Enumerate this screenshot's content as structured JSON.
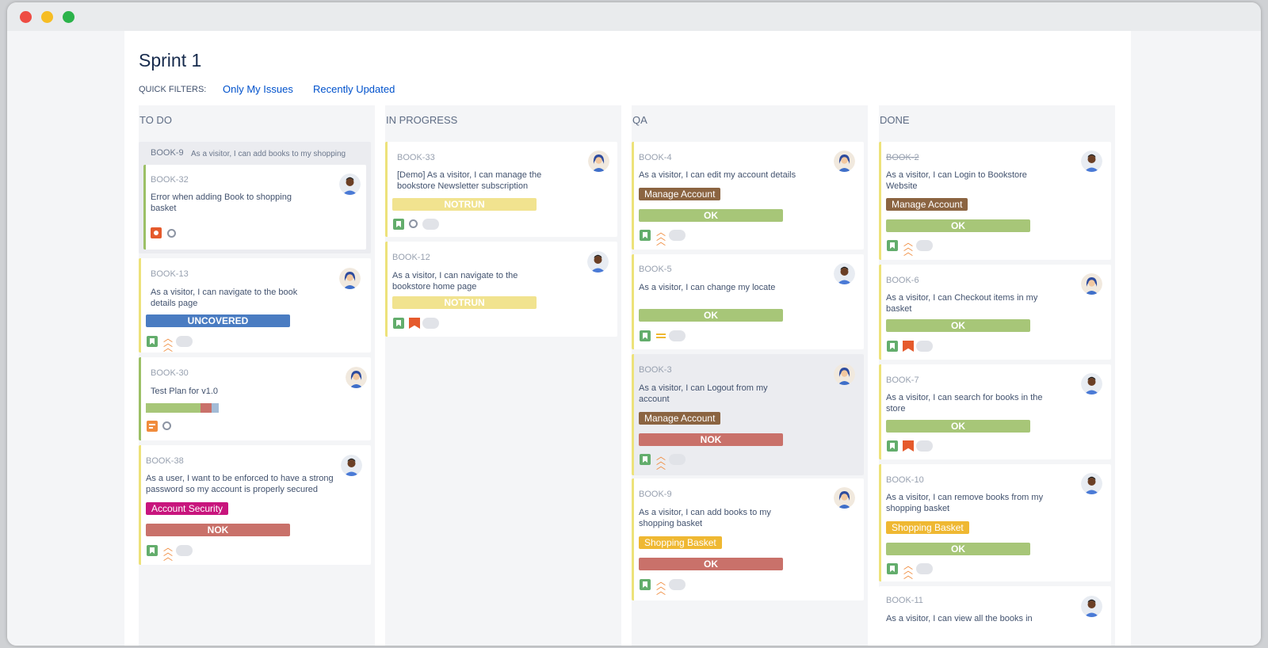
{
  "board": {
    "title": "Sprint 1",
    "quick_filters_label": "QUICK FILTERS:",
    "filters": [
      "Only My Issues",
      "Recently Updated"
    ]
  },
  "columns": [
    {
      "name": "TO DO"
    },
    {
      "name": "IN PROGRESS"
    },
    {
      "name": "QA"
    },
    {
      "name": "DONE"
    }
  ],
  "cards": {
    "book9_parent": {
      "key": "BOOK-9",
      "summary": "As a visitor, I can add books to my shopping"
    },
    "book32": {
      "key": "BOOK-32",
      "summary": "Error when adding Book to shopping basket"
    },
    "book13": {
      "key": "BOOK-13",
      "summary": "As a visitor, I can navigate to the book details page",
      "status": "UNCOVERED"
    },
    "book30": {
      "key": "BOOK-30",
      "summary": "Test Plan for v1.0",
      "progress": {
        "ok": 0.75,
        "nok": 0.15,
        "other": 0.1
      }
    },
    "book38": {
      "key": "BOOK-38",
      "summary": "As a user, I want to be enforced to have a strong password so my account is properly secured",
      "label": "Account Security",
      "status": "NOK"
    },
    "book33": {
      "key": "BOOK-33",
      "summary": "[Demo] As a visitor, I can manage the bookstore Newsletter subscription",
      "status": "NOTRUN"
    },
    "book12": {
      "key": "BOOK-12",
      "summary": "As a visitor, I can navigate to the bookstore home page",
      "status": "NOTRUN"
    },
    "book4": {
      "key": "BOOK-4",
      "summary": "As a visitor, I can edit my account details",
      "label": "Manage Account",
      "status": "OK"
    },
    "book5": {
      "key": "BOOK-5",
      "summary": "As a visitor, I can change my locate",
      "status": "OK"
    },
    "book3": {
      "key": "BOOK-3",
      "summary": "As a visitor, I can Logout from my account",
      "label": "Manage Account",
      "status": "NOK"
    },
    "book9": {
      "key": "BOOK-9",
      "summary": "As a visitor, I can add books to my shopping basket",
      "label": "Shopping Basket",
      "status": "OK"
    },
    "book2": {
      "key": "BOOK-2",
      "summary": "As a visitor, I can Login to Bookstore Website",
      "label": "Manage Account",
      "status": "OK"
    },
    "book6": {
      "key": "BOOK-6",
      "summary": "As a visitor, I can Checkout items in my basket",
      "status": "OK"
    },
    "book7": {
      "key": "BOOK-7",
      "summary": "As a visitor, I can search for books in the store",
      "status": "OK"
    },
    "book10": {
      "key": "BOOK-10",
      "summary": "As a visitor, I can remove books from my shopping basket",
      "label": "Shopping Basket",
      "status": "OK"
    },
    "book11": {
      "key": "BOOK-11",
      "summary": "As a visitor, I can view all the books in"
    }
  },
  "colors": {
    "manage_account": "#8b6441",
    "account_security": "#c8157d",
    "shopping_basket": "#efb832",
    "story_green": "#63ad6c",
    "bug_red": "#e55a2c",
    "priority_orange": "#f08b3c"
  }
}
